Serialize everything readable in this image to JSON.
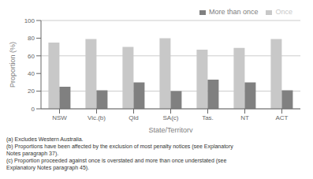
{
  "chart_data": {
    "type": "bar",
    "categories": [
      "NSW",
      "Vic.(b)",
      "Qld",
      "SA(c)",
      "Tas.",
      "NT",
      "ACT"
    ],
    "series": [
      {
        "name": "Once",
        "color": "#c8c8c8",
        "values": [
          75,
          79,
          70,
          80,
          67,
          69,
          79
        ]
      },
      {
        "name": "More than once",
        "color": "#808080",
        "values": [
          25,
          21,
          30,
          20,
          33,
          30,
          21
        ]
      }
    ],
    "xlabel": "State/Territory",
    "ylabel": "Proportion (%)",
    "ylim": [
      0,
      100
    ],
    "yticks": [
      0,
      20,
      40,
      60,
      80,
      100
    ],
    "grid": true,
    "legend": "upper right",
    "annotations": [
      "(a) Excludes Western Australia.",
      "(b) Proportions have been affected by the exclusion of most penalty notices (see Explanatory",
      "Notes paragraph 37).",
      "(c) Proportion proceeded against once is overstated and more than once understated (see",
      "Explanatory Notes paragraph 45)."
    ]
  }
}
